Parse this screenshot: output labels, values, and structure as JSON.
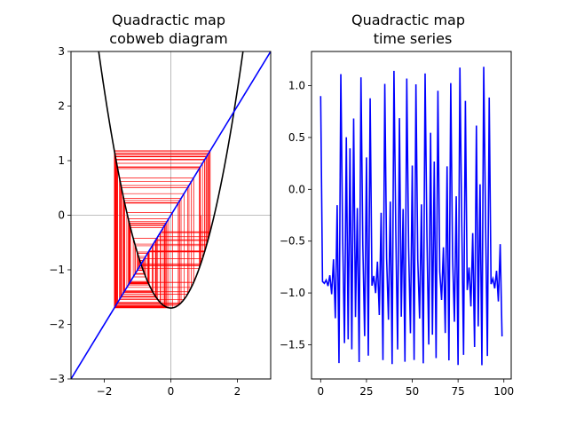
{
  "chart_data": [
    {
      "type": "line",
      "title_line1": "Quadractic map",
      "title_line2": "cobweb diagram",
      "xlim": [
        -3,
        3
      ],
      "ylim": [
        -3,
        3
      ],
      "xticks": [
        -2,
        0,
        2
      ],
      "xtick_labels": [
        "−2",
        "0",
        "2"
      ],
      "yticks": [
        -3,
        -2,
        -1,
        0,
        1,
        2,
        3
      ],
      "ytick_labels": [
        "−3",
        "−2",
        "−1",
        "0",
        "1",
        "2",
        "3"
      ],
      "map": {
        "c": -1.7,
        "x0": 0.9,
        "iterations": 100
      },
      "reference_lines": {
        "x0": 0,
        "y0": 0,
        "color": "#aaaaaa"
      },
      "series": [
        {
          "role": "parabola",
          "color": "#000000"
        },
        {
          "role": "identity",
          "color": "#0000ff"
        },
        {
          "role": "cobweb",
          "color": "#ff0000"
        }
      ]
    },
    {
      "type": "line",
      "title_line1": "Quadractic map",
      "title_line2": "time series",
      "xlim": [
        -5,
        104
      ],
      "ylim": [
        -1.83,
        1.33
      ],
      "xticks": [
        0,
        25,
        50,
        75,
        100
      ],
      "xtick_labels": [
        "0",
        "25",
        "50",
        "75",
        "100"
      ],
      "yticks": [
        -1.5,
        -1.0,
        -0.5,
        0.0,
        0.5,
        1.0
      ],
      "ytick_labels": [
        "−1.5",
        "−1.0",
        "−0.5",
        "0.0",
        "0.5",
        "1.0"
      ],
      "series": [
        {
          "role": "time-series",
          "color": "#0000ff",
          "points": 100
        }
      ]
    }
  ]
}
